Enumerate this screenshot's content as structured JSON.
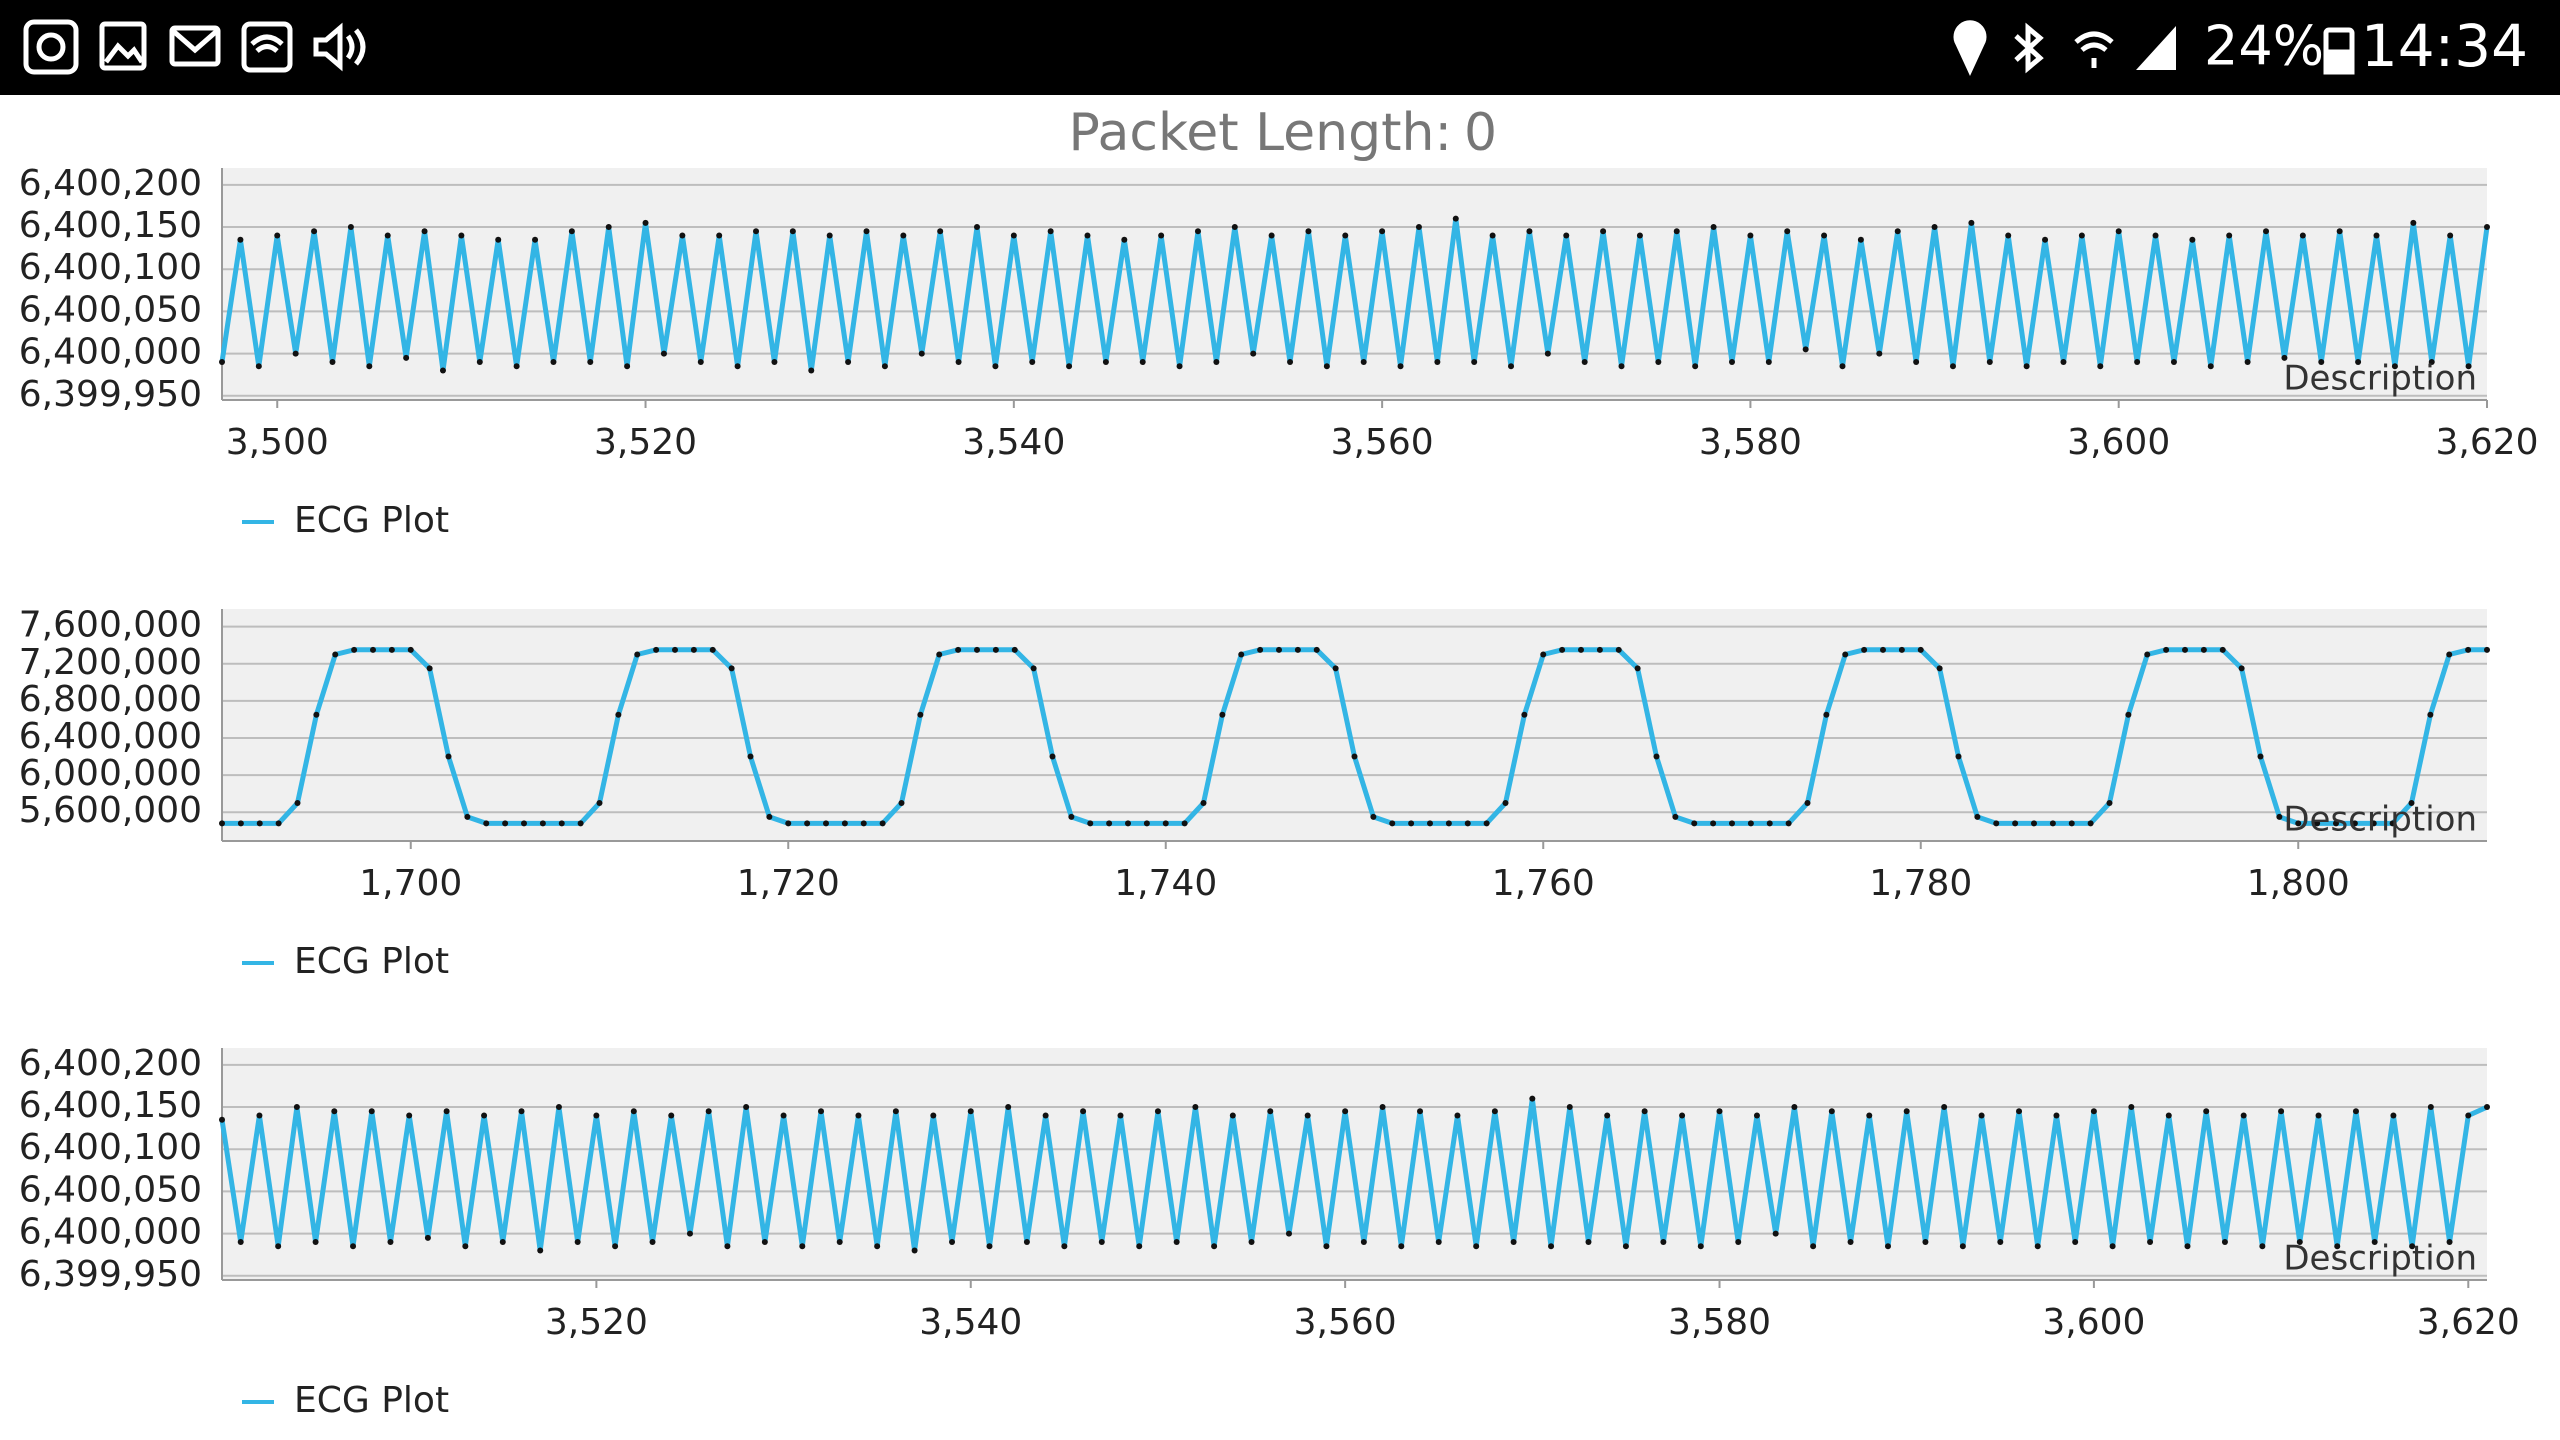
{
  "status_bar": {
    "battery": "24%",
    "time": "14:34"
  },
  "header": {
    "label": "Packet Length:",
    "value": "0"
  },
  "chart_data": [
    {
      "type": "line",
      "description": "Description",
      "legend": "bottom-left",
      "grid": true,
      "xlim": [
        3497,
        3620
      ],
      "ylim": [
        6399945,
        6400220
      ],
      "xticks": [
        {
          "value": 3500,
          "label": "3,500"
        },
        {
          "value": 3520,
          "label": "3,520"
        },
        {
          "value": 3540,
          "label": "3,540"
        },
        {
          "value": 3560,
          "label": "3,560"
        },
        {
          "value": 3580,
          "label": "3,580"
        },
        {
          "value": 3600,
          "label": "3,600"
        },
        {
          "value": 3620,
          "label": "3,620"
        }
      ],
      "yticks": [
        {
          "value": 6399950,
          "label": "6,399,950"
        },
        {
          "value": 6400000,
          "label": "6,400,000"
        },
        {
          "value": 6400050,
          "label": "6,400,050"
        },
        {
          "value": 6400100,
          "label": "6,400,100"
        },
        {
          "value": 6400150,
          "label": "6,400,150"
        },
        {
          "value": 6400200,
          "label": "6,400,200"
        }
      ],
      "x": [
        3497,
        3498,
        3499,
        3500,
        3501,
        3502,
        3503,
        3504,
        3505,
        3506,
        3507,
        3508,
        3509,
        3510,
        3511,
        3512,
        3513,
        3514,
        3515,
        3516,
        3517,
        3518,
        3519,
        3520,
        3521,
        3522,
        3523,
        3524,
        3525,
        3526,
        3527,
        3528,
        3529,
        3530,
        3531,
        3532,
        3533,
        3534,
        3535,
        3536,
        3537,
        3538,
        3539,
        3540,
        3541,
        3542,
        3543,
        3544,
        3545,
        3546,
        3547,
        3548,
        3549,
        3550,
        3551,
        3552,
        3553,
        3554,
        3555,
        3556,
        3557,
        3558,
        3559,
        3560,
        3561,
        3562,
        3563,
        3564,
        3565,
        3566,
        3567,
        3568,
        3569,
        3570,
        3571,
        3572,
        3573,
        3574,
        3575,
        3576,
        3577,
        3578,
        3579,
        3580,
        3581,
        3582,
        3583,
        3584,
        3585,
        3586,
        3587,
        3588,
        3589,
        3590,
        3591,
        3592,
        3593,
        3594,
        3595,
        3596,
        3597,
        3598,
        3599,
        3600,
        3601,
        3602,
        3603,
        3604,
        3605,
        3606,
        3607,
        3608,
        3609,
        3610,
        3611,
        3612,
        3613,
        3614,
        3615,
        3616,
        3617,
        3618,
        3619,
        3620
      ],
      "series": [
        {
          "name": "ECG Plot",
          "color": "#33b5e5",
          "values": [
            6399990,
            6400135,
            6399985,
            6400140,
            6400000,
            6400145,
            6399990,
            6400150,
            6399985,
            6400140,
            6399995,
            6400145,
            6399980,
            6400140,
            6399990,
            6400135,
            6399985,
            6400135,
            6399990,
            6400145,
            6399990,
            6400150,
            6399985,
            6400155,
            6400000,
            6400140,
            6399990,
            6400140,
            6399985,
            6400145,
            6399990,
            6400145,
            6399980,
            6400140,
            6399990,
            6400145,
            6399985,
            6400140,
            6400000,
            6400145,
            6399990,
            6400150,
            6399985,
            6400140,
            6399990,
            6400145,
            6399985,
            6400140,
            6399990,
            6400135,
            6399990,
            6400140,
            6399985,
            6400145,
            6399990,
            6400150,
            6400000,
            6400140,
            6399990,
            6400145,
            6399985,
            6400140,
            6399990,
            6400145,
            6399985,
            6400150,
            6399990,
            6400160,
            6399990,
            6400140,
            6399985,
            6400145,
            6400000,
            6400140,
            6399990,
            6400145,
            6399985,
            6400140,
            6399990,
            6400145,
            6399985,
            6400150,
            6399990,
            6400140,
            6399990,
            6400145,
            6400005,
            6400140,
            6399985,
            6400135,
            6400000,
            6400145,
            6399990,
            6400150,
            6399985,
            6400155,
            6399990,
            6400140,
            6399985,
            6400135,
            6399990,
            6400140,
            6399985,
            6400145,
            6399990,
            6400140,
            6399990,
            6400135,
            6399985,
            6400140,
            6399990,
            6400145,
            6399995,
            6400140,
            6399990,
            6400145,
            6399990,
            6400140,
            6399985,
            6400155,
            6399990,
            6400140,
            6399985,
            6400150
          ]
        }
      ]
    },
    {
      "type": "line",
      "description": "Description",
      "legend": "bottom-left",
      "grid": true,
      "xlim": [
        1690,
        1810
      ],
      "ylim": [
        5290000,
        7790000
      ],
      "xticks": [
        {
          "value": 1700,
          "label": "1,700"
        },
        {
          "value": 1720,
          "label": "1,720"
        },
        {
          "value": 1740,
          "label": "1,740"
        },
        {
          "value": 1760,
          "label": "1,760"
        },
        {
          "value": 1780,
          "label": "1,780"
        },
        {
          "value": 1800,
          "label": "1,800"
        }
      ],
      "yticks": [
        {
          "value": 5600000,
          "label": "5,600,000"
        },
        {
          "value": 6000000,
          "label": "6,000,000"
        },
        {
          "value": 6400000,
          "label": "6,400,000"
        },
        {
          "value": 6800000,
          "label": "6,800,000"
        },
        {
          "value": 7200000,
          "label": "7,200,000"
        },
        {
          "value": 7600000,
          "label": "7,600,000"
        }
      ],
      "x": [
        1690,
        1691,
        1692,
        1693,
        1694,
        1695,
        1696,
        1697,
        1698,
        1699,
        1700,
        1701,
        1702,
        1703,
        1704,
        1705,
        1706,
        1707,
        1708,
        1709,
        1710,
        1711,
        1712,
        1713,
        1714,
        1715,
        1716,
        1717,
        1718,
        1719,
        1720,
        1721,
        1722,
        1723,
        1724,
        1725,
        1726,
        1727,
        1728,
        1729,
        1730,
        1731,
        1732,
        1733,
        1734,
        1735,
        1736,
        1737,
        1738,
        1739,
        1740,
        1741,
        1742,
        1743,
        1744,
        1745,
        1746,
        1747,
        1748,
        1749,
        1750,
        1751,
        1752,
        1753,
        1754,
        1755,
        1756,
        1757,
        1758,
        1759,
        1760,
        1761,
        1762,
        1763,
        1764,
        1765,
        1766,
        1767,
        1768,
        1769,
        1770,
        1771,
        1772,
        1773,
        1774,
        1775,
        1776,
        1777,
        1778,
        1779,
        1780,
        1781,
        1782,
        1783,
        1784,
        1785,
        1786,
        1787,
        1788,
        1789,
        1790,
        1791,
        1792,
        1793,
        1794,
        1795,
        1796,
        1797,
        1798,
        1799,
        1800,
        1801,
        1802,
        1803,
        1804,
        1805,
        1806,
        1807,
        1808,
        1809,
        1810
      ],
      "series": [
        {
          "name": "ECG Plot",
          "color": "#33b5e5",
          "values": [
            5480000,
            5480000,
            5480000,
            5480000,
            5700000,
            6650000,
            7300000,
            7350000,
            7350000,
            7350000,
            7350000,
            7150000,
            6200000,
            5550000,
            5480000,
            5480000,
            5480000,
            5480000,
            5480000,
            5480000,
            5700000,
            6650000,
            7300000,
            7350000,
            7350000,
            7350000,
            7350000,
            7150000,
            6200000,
            5550000,
            5480000,
            5480000,
            5480000,
            5480000,
            5480000,
            5480000,
            5700000,
            6650000,
            7300000,
            7350000,
            7350000,
            7350000,
            7350000,
            7150000,
            6200000,
            5550000,
            5480000,
            5480000,
            5480000,
            5480000,
            5480000,
            5480000,
            5700000,
            6650000,
            7300000,
            7350000,
            7350000,
            7350000,
            7350000,
            7150000,
            6200000,
            5550000,
            5480000,
            5480000,
            5480000,
            5480000,
            5480000,
            5480000,
            5700000,
            6650000,
            7300000,
            7350000,
            7350000,
            7350000,
            7350000,
            7150000,
            6200000,
            5550000,
            5480000,
            5480000,
            5480000,
            5480000,
            5480000,
            5480000,
            5700000,
            6650000,
            7300000,
            7350000,
            7350000,
            7350000,
            7350000,
            7150000,
            6200000,
            5550000,
            5480000,
            5480000,
            5480000,
            5480000,
            5480000,
            5480000,
            5700000,
            6650000,
            7300000,
            7350000,
            7350000,
            7350000,
            7350000,
            7150000,
            6200000,
            5550000,
            5480000,
            5480000,
            5480000,
            5480000,
            5480000,
            5480000,
            5700000,
            6650000,
            7300000,
            7350000,
            7350000
          ]
        }
      ]
    },
    {
      "type": "line",
      "description": "Description",
      "legend": "bottom-left",
      "grid": true,
      "xlim": [
        3500,
        3621
      ],
      "ylim": [
        6399945,
        6400220
      ],
      "xticks": [
        {
          "value": 3520,
          "label": "3,520"
        },
        {
          "value": 3540,
          "label": "3,540"
        },
        {
          "value": 3560,
          "label": "3,560"
        },
        {
          "value": 3580,
          "label": "3,580"
        },
        {
          "value": 3600,
          "label": "3,600"
        },
        {
          "value": 3620,
          "label": "3,620"
        }
      ],
      "yticks": [
        {
          "value": 6399950,
          "label": "6,399,950"
        },
        {
          "value": 6400000,
          "label": "6,400,000"
        },
        {
          "value": 6400050,
          "label": "6,400,050"
        },
        {
          "value": 6400100,
          "label": "6,400,100"
        },
        {
          "value": 6400150,
          "label": "6,400,150"
        },
        {
          "value": 6400200,
          "label": "6,400,200"
        }
      ],
      "x": [
        3500,
        3501,
        3502,
        3503,
        3504,
        3505,
        3506,
        3507,
        3508,
        3509,
        3510,
        3511,
        3512,
        3513,
        3514,
        3515,
        3516,
        3517,
        3518,
        3519,
        3520,
        3521,
        3522,
        3523,
        3524,
        3525,
        3526,
        3527,
        3528,
        3529,
        3530,
        3531,
        3532,
        3533,
        3534,
        3535,
        3536,
        3537,
        3538,
        3539,
        3540,
        3541,
        3542,
        3543,
        3544,
        3545,
        3546,
        3547,
        3548,
        3549,
        3550,
        3551,
        3552,
        3553,
        3554,
        3555,
        3556,
        3557,
        3558,
        3559,
        3560,
        3561,
        3562,
        3563,
        3564,
        3565,
        3566,
        3567,
        3568,
        3569,
        3570,
        3571,
        3572,
        3573,
        3574,
        3575,
        3576,
        3577,
        3578,
        3579,
        3580,
        3581,
        3582,
        3583,
        3584,
        3585,
        3586,
        3587,
        3588,
        3589,
        3590,
        3591,
        3592,
        3593,
        3594,
        3595,
        3596,
        3597,
        3598,
        3599,
        3600,
        3601,
        3602,
        3603,
        3604,
        3605,
        3606,
        3607,
        3608,
        3609,
        3610,
        3611,
        3612,
        3613,
        3614,
        3615,
        3616,
        3617,
        3618,
        3619,
        3620,
        3621
      ],
      "series": [
        {
          "name": "ECG Plot",
          "color": "#33b5e5",
          "values": [
            6400135,
            6399990,
            6400140,
            6399985,
            6400150,
            6399990,
            6400145,
            6399985,
            6400145,
            6399990,
            6400140,
            6399995,
            6400145,
            6399985,
            6400140,
            6399990,
            6400145,
            6399980,
            6400150,
            6399990,
            6400140,
            6399985,
            6400145,
            6399990,
            6400140,
            6400000,
            6400145,
            6399985,
            6400150,
            6399990,
            6400140,
            6399985,
            6400145,
            6399990,
            6400140,
            6399985,
            6400145,
            6399980,
            6400140,
            6399990,
            6400145,
            6399985,
            6400150,
            6399990,
            6400140,
            6399985,
            6400145,
            6399990,
            6400140,
            6399985,
            6400145,
            6399990,
            6400150,
            6399985,
            6400140,
            6399990,
            6400145,
            6400000,
            6400140,
            6399985,
            6400145,
            6399990,
            6400150,
            6399985,
            6400145,
            6399990,
            6400140,
            6399985,
            6400145,
            6399990,
            6400160,
            6399985,
            6400150,
            6399990,
            6400140,
            6399985,
            6400145,
            6399990,
            6400140,
            6399985,
            6400145,
            6399990,
            6400140,
            6400000,
            6400150,
            6399985,
            6400145,
            6399990,
            6400140,
            6399985,
            6400145,
            6399990,
            6400150,
            6399985,
            6400140,
            6399990,
            6400145,
            6399985,
            6400140,
            6399990,
            6400145,
            6399985,
            6400150,
            6399990,
            6400140,
            6399985,
            6400145,
            6399990,
            6400140,
            6399985,
            6400145,
            6399990,
            6400140,
            6399985,
            6400145,
            6399990,
            6400140,
            6399985,
            6400150,
            6399990,
            6400140,
            6400150
          ]
        }
      ]
    }
  ]
}
